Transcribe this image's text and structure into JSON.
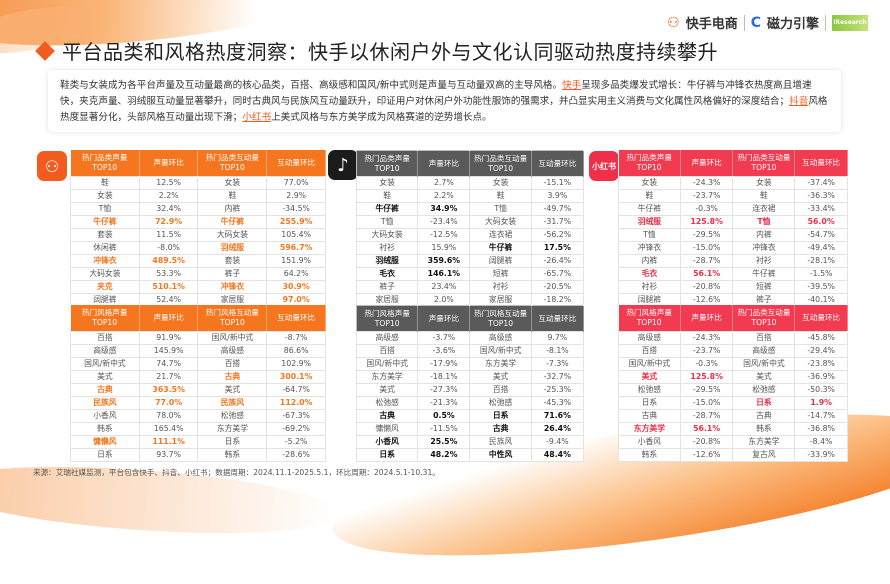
{
  "header": {
    "logos": [
      "快手电商",
      "磁力引擎"
    ],
    "title": "平台品类和风格热度洞察：快手以休闲户外与文化认同驱动热度持续攀升"
  },
  "summary": {
    "part1": "鞋类与女装成为各平台声量及互动量最高的核心品类，百搭、高级感和国风/新中式则是声量与互动量双高的主导风格。",
    "kuaishou": "快手",
    "part2": "呈现多品类爆发式增长：牛仔裤与冲锋衣热度高且增速快，夹克声量、羽绒服互动量显著攀升，同时古典风与民族风互动量跃升，印证用户对休闲户外功能性服饰的强需求，并凸显实用主义消费与文化属性风格偏好的深度结合；",
    "douyin": "抖音",
    "part3": "风格热度显著分化，头部风格互动量出现下滑；",
    "xhs": "小红书",
    "part4": "上美式风格与东方美学成为风格赛道的逆势增长点。"
  },
  "platform_icons": {
    "kuaishou": "kuaishou-logo-icon",
    "douyin": "douyin-logo-icon",
    "xhs": "小红书"
  },
  "tables": {
    "ks_category": {
      "headers": [
        "热门品类声量TOP10",
        "声量环比",
        "热门品类互动量TOP10",
        "互动量环比"
      ],
      "rows": [
        [
          "鞋",
          "12.5%",
          "女装",
          "77.0%"
        ],
        [
          "女装",
          "2.2%",
          "鞋",
          "2.9%"
        ],
        [
          "T恤",
          "32.4%",
          "内裤",
          "-34.5%"
        ],
        [
          "牛仔裤",
          "72.9%",
          "牛仔裤",
          "255.9%"
        ],
        [
          "套装",
          "11.5%",
          "大码女装",
          "105.4%"
        ],
        [
          "休闲裤",
          "-8.0%",
          "羽绒服",
          "596.7%"
        ],
        [
          "冲锋衣",
          "489.5%",
          "套装",
          "151.9%"
        ],
        [
          "大码女装",
          "53.3%",
          "裤子",
          "64.2%"
        ],
        [
          "夹克",
          "510.1%",
          "冲锋衣",
          "30.9%"
        ],
        [
          "阔腿裤",
          "52.4%",
          "家居服",
          "97.0%"
        ]
      ],
      "highlight": [
        [
          3,
          0
        ],
        [
          3,
          1
        ],
        [
          3,
          2
        ],
        [
          3,
          3
        ],
        [
          5,
          2
        ],
        [
          5,
          3
        ],
        [
          6,
          0
        ],
        [
          6,
          1
        ],
        [
          8,
          0
        ],
        [
          8,
          1
        ],
        [
          8,
          2
        ],
        [
          8,
          3
        ],
        [
          9,
          3
        ]
      ]
    },
    "ks_style": {
      "headers": [
        "热门风格声量TOP10",
        "声量环比",
        "热门风格互动量TOP10",
        "互动量环比"
      ],
      "rows": [
        [
          "百搭",
          "91.9%",
          "国风/新中式",
          "-8.7%"
        ],
        [
          "高级感",
          "145.9%",
          "高级感",
          "86.6%"
        ],
        [
          "国风/新中式",
          "74.7%",
          "百搭",
          "102.9%"
        ],
        [
          "美式",
          "21.7%",
          "古典",
          "300.1%"
        ],
        [
          "古典",
          "363.5%",
          "美式",
          "-64.7%"
        ],
        [
          "民族风",
          "77.0%",
          "民族风",
          "112.0%"
        ],
        [
          "小香风",
          "78.0%",
          "松弛感",
          "-67.3%"
        ],
        [
          "韩系",
          "165.4%",
          "东方美学",
          "-69.2%"
        ],
        [
          "慵懒风",
          "111.1%",
          "日系",
          "-5.2%"
        ],
        [
          "日系",
          "93.7%",
          "韩系",
          "-28.6%"
        ]
      ],
      "highlight": [
        [
          3,
          2
        ],
        [
          3,
          3
        ],
        [
          4,
          0
        ],
        [
          4,
          1
        ],
        [
          5,
          0
        ],
        [
          5,
          1
        ],
        [
          5,
          2
        ],
        [
          5,
          3
        ],
        [
          8,
          0
        ],
        [
          8,
          1
        ]
      ]
    },
    "dy_category": {
      "headers": [
        "热门品类声量TOP10",
        "声量环比",
        "热门品类互动量TOP10",
        "互动量环比"
      ],
      "rows": [
        [
          "女装",
          "2.7%",
          "女装",
          "-15.1%"
        ],
        [
          "鞋",
          "2.2%",
          "鞋",
          "3.9%"
        ],
        [
          "牛仔裤",
          "34.9%",
          "T恤",
          "-49.7%"
        ],
        [
          "T恤",
          "-23.4%",
          "大码女装",
          "-31.7%"
        ],
        [
          "大码女装",
          "-12.5%",
          "连衣裙",
          "-56.2%"
        ],
        [
          "衬衫",
          "15.9%",
          "牛仔裤",
          "17.5%"
        ],
        [
          "羽绒服",
          "359.6%",
          "阔腿裤",
          "-26.4%"
        ],
        [
          "毛衣",
          "146.1%",
          "短裤",
          "-65.7%"
        ],
        [
          "裤子",
          "23.4%",
          "衬衫",
          "-20.5%"
        ],
        [
          "家居服",
          "2.0%",
          "家居服",
          "-18.2%"
        ]
      ],
      "highlight": [
        [
          2,
          0
        ],
        [
          2,
          1
        ],
        [
          5,
          2
        ],
        [
          5,
          3
        ],
        [
          6,
          0
        ],
        [
          6,
          1
        ],
        [
          7,
          0
        ],
        [
          7,
          1
        ]
      ]
    },
    "dy_style": {
      "headers": [
        "热门风格声量TOP10",
        "声量环比",
        "热门风格互动量TOP10",
        "互动量环比"
      ],
      "rows": [
        [
          "高级感",
          "-3.7%",
          "高级感",
          "9.7%"
        ],
        [
          "百搭",
          "-3.6%",
          "国风/新中式",
          "-8.1%"
        ],
        [
          "国风/新中式",
          "-17.9%",
          "东方美学",
          "-7.3%"
        ],
        [
          "东方美学",
          "-18.1%",
          "美式",
          "-32.7%"
        ],
        [
          "美式",
          "-27.3%",
          "百搭",
          "-25.3%"
        ],
        [
          "松弛感",
          "-21.3%",
          "松弛感",
          "-45.3%"
        ],
        [
          "古典",
          "0.5%",
          "日系",
          "71.6%"
        ],
        [
          "慵懒风",
          "-11.5%",
          "古典",
          "26.4%"
        ],
        [
          "小香风",
          "25.5%",
          "民族风",
          "-9.4%"
        ],
        [
          "日系",
          "48.2%",
          "中性风",
          "48.4%"
        ]
      ],
      "highlight": [
        [
          6,
          0
        ],
        [
          6,
          1
        ],
        [
          6,
          2
        ],
        [
          6,
          3
        ],
        [
          7,
          2
        ],
        [
          7,
          3
        ],
        [
          8,
          0
        ],
        [
          8,
          1
        ],
        [
          9,
          0
        ],
        [
          9,
          1
        ],
        [
          9,
          2
        ],
        [
          9,
          3
        ]
      ]
    },
    "xhs_category": {
      "headers": [
        "热门品类声量TOP10",
        "声量环比",
        "热门品类互动量TOP10",
        "互动量环比"
      ],
      "rows": [
        [
          "女装",
          "-24.3%",
          "女装",
          "-37.4%"
        ],
        [
          "鞋",
          "-23.7%",
          "鞋",
          "-36.3%"
        ],
        [
          "牛仔裤",
          "-0.3%",
          "连衣裙",
          "-33.4%"
        ],
        [
          "羽绒服",
          "125.8%",
          "T恤",
          "56.0%"
        ],
        [
          "T恤",
          "-29.5%",
          "内裤",
          "-54.7%"
        ],
        [
          "冲锋衣",
          "-15.0%",
          "冲锋衣",
          "-49.4%"
        ],
        [
          "内裤",
          "-28.7%",
          "衬衫",
          "-28.1%"
        ],
        [
          "毛衣",
          "56.1%",
          "牛仔裤",
          "-1.5%"
        ],
        [
          "衬衫",
          "-20.8%",
          "短裤",
          "-39.5%"
        ],
        [
          "阔腿裤",
          "-12.6%",
          "裤子",
          "-40.1%"
        ]
      ],
      "highlight": [
        [
          3,
          0
        ],
        [
          3,
          1
        ],
        [
          3,
          2
        ],
        [
          3,
          3
        ],
        [
          7,
          0
        ],
        [
          7,
          1
        ]
      ]
    },
    "xhs_style": {
      "headers": [
        "热门风格声量TOP10",
        "声量环比",
        "热门品类互动量TOP10",
        "互动量环比"
      ],
      "rows": [
        [
          "高级感",
          "-24.3%",
          "百搭",
          "-45.8%"
        ],
        [
          "百搭",
          "-23.7%",
          "高级感",
          "-29.4%"
        ],
        [
          "国风/新中式",
          "-0.3%",
          "国风/新中式",
          "-23.8%"
        ],
        [
          "美式",
          "125.8%",
          "美式",
          "-36.9%"
        ],
        [
          "松弛感",
          "-29.5%",
          "松弛感",
          "-50.3%"
        ],
        [
          "日系",
          "-15.0%",
          "日系",
          "1.9%"
        ],
        [
          "古典",
          "-28.7%",
          "古典",
          "-14.7%"
        ],
        [
          "东方美学",
          "56.1%",
          "韩系",
          "-36.8%"
        ],
        [
          "小香风",
          "-20.8%",
          "东方美学",
          "-8.4%"
        ],
        [
          "韩系",
          "-12.6%",
          "复古风",
          "-33.9%"
        ]
      ],
      "highlight": [
        [
          3,
          0
        ],
        [
          3,
          1
        ],
        [
          5,
          2
        ],
        [
          5,
          3
        ],
        [
          7,
          0
        ],
        [
          7,
          1
        ]
      ]
    }
  },
  "footer": {
    "source": "来源：艾瑞社媒监测，平台包含快手、抖音、小红书；数据周期：2024.11.1-2025.5.1，环比周期：2024.5.1-10.31。"
  }
}
